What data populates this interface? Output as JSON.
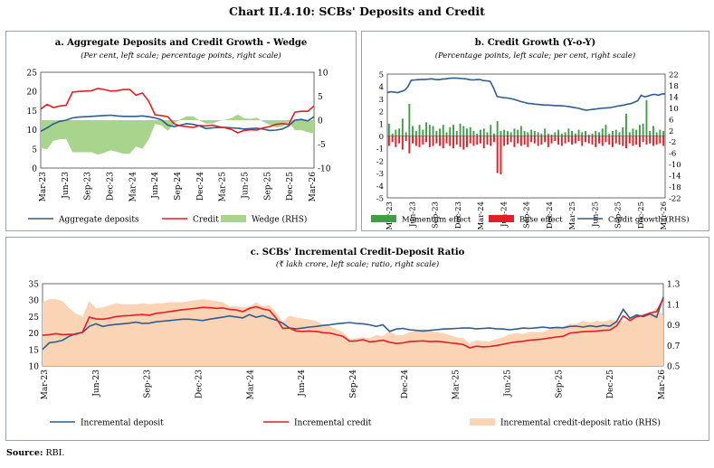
{
  "title": "Chart II.4.10: SCBs' Deposits and Credit",
  "source_label": "Source:",
  "source_text": "RBI.",
  "colors": {
    "blue": "#2e5d8e",
    "red": "#e31f26",
    "green_area": "#a8d48e",
    "green_bar": "#3f9f45",
    "red_bar": "#e31f26",
    "peach": "#fbd3b5"
  },
  "chart_data": [
    {
      "id": "a",
      "type": "line",
      "title": "a. Aggregate Deposits and Credit Growth - Wedge",
      "subtitle": "(Per cent, left scale; percentage points, right scale)",
      "x_ticks": [
        "Mar-23",
        "Jun-23",
        "Sep-23",
        "Dec-23",
        "Mar-24",
        "Jun-24",
        "Sep-24",
        "Dec-24",
        "Mar-25",
        "Jun-25",
        "Sep-25",
        "Dec-25",
        "Mar-26"
      ],
      "ylim": [
        0,
        25
      ],
      "y_ticks": [
        0,
        5,
        10,
        15,
        20,
        25
      ],
      "y2lim": [
        -10,
        10
      ],
      "y2_ticks": [
        -10,
        -5,
        0,
        5,
        10
      ],
      "legend": [
        "Aggregate deposits",
        "Credit",
        "Wedge (RHS)"
      ],
      "series": [
        {
          "name": "Aggregate deposits",
          "axis": "left",
          "values": [
            9.6,
            10.5,
            11.5,
            12.2,
            12.5,
            13.1,
            13.3,
            13.4,
            13.5,
            13.6,
            13.7,
            13.8,
            13.6,
            13.5,
            13.5,
            13.5,
            13.6,
            13.4,
            13.1,
            12.6,
            11.2,
            10.8,
            11.2,
            11.6,
            11.4,
            11.0,
            10.3,
            10.5,
            10.6,
            10.6,
            10.5,
            10.4,
            10.2,
            10.3,
            10.4,
            10.2,
            9.8,
            9.9,
            10.2,
            11.0,
            12.5,
            12.7,
            12.3,
            13.4
          ]
        },
        {
          "name": "Credit",
          "axis": "left",
          "values": [
            15.4,
            16.6,
            15.8,
            16.2,
            16.4,
            19.8,
            20.0,
            20.1,
            20.2,
            20.8,
            20.5,
            20.1,
            20.2,
            20.5,
            20.5,
            19.0,
            19.6,
            17.4,
            13.9,
            13.7,
            13.4,
            11.5,
            11.0,
            10.8,
            10.6,
            11.1,
            11.0,
            11.2,
            10.8,
            10.5,
            10.1,
            9.2,
            9.8,
            10.0,
            9.9,
            10.5,
            10.8,
            11.4,
            11.6,
            11.4,
            14.6,
            14.8,
            14.8,
            16.2
          ]
        },
        {
          "name": "Wedge (RHS)",
          "axis": "right",
          "values": [
            -5.8,
            -6.1,
            -4.3,
            -4.0,
            -3.9,
            -6.7,
            -6.7,
            -6.7,
            -6.7,
            -7.2,
            -6.8,
            -6.3,
            -6.6,
            -7.0,
            -7.0,
            -5.5,
            -6.0,
            -4.0,
            -0.8,
            -1.1,
            -2.2,
            -0.7,
            0.2,
            0.8,
            0.8,
            -0.1,
            -0.7,
            -0.7,
            -0.2,
            0.1,
            0.4,
            1.2,
            0.4,
            0.3,
            0.5,
            -0.3,
            -1.0,
            -1.5,
            -1.4,
            -0.4,
            -2.1,
            -2.1,
            -2.5,
            -2.8
          ]
        }
      ]
    },
    {
      "id": "b",
      "type": "bar",
      "title": "b. Credit Growth (Y-o-Y)",
      "subtitle": "(Percentage points, left scale; per cent, right scale)",
      "x_ticks": [
        "Mar-23",
        "Jun-23",
        "Sep-23",
        "Dec-23",
        "Mar-24",
        "Jun-24",
        "Sep-24",
        "Dec-24",
        "Mar-25",
        "Jun-25",
        "Sep-25",
        "Dec-25",
        "Mar-26"
      ],
      "ylim": [
        -5,
        5
      ],
      "y_ticks": [
        -5,
        -4,
        -3,
        -2,
        -1,
        0,
        1,
        2,
        3,
        4,
        5
      ],
      "y2lim": [
        -22,
        22
      ],
      "y2_ticks": [
        -22,
        -18,
        -14,
        -10,
        -6,
        -2,
        2,
        6,
        10,
        14,
        18,
        22
      ],
      "legend": [
        "Momentum effect",
        "Base effect",
        "Credit growth (RHS)"
      ],
      "series": [
        {
          "name": "Momentum effect",
          "axis": "left",
          "values": [
            1.0,
            0.2,
            0.5,
            0.6,
            1.4,
            0.3,
            2.6,
            0.8,
            0.4,
            0.9,
            0.5,
            1.1,
            0.9,
            0.8,
            0.4,
            0.6,
            0.9,
            0.3,
            0.7,
            0.9,
            0.4,
            1.0,
            0.8,
            0.6,
            0.7,
            0.4,
            0.2,
            0.5,
            0.6,
            0.3,
            0.9,
            0.2,
            1.2,
            0.4,
            0.5,
            0.4,
            0.3,
            0.6,
            0.5,
            0.8,
            0.4,
            0.3,
            0.5,
            0.4,
            0.3,
            0.2,
            0.6,
            0.2,
            0.1,
            0.3,
            0.5,
            0.2,
            0.3,
            0.6,
            0.4,
            0.2,
            0.5,
            0.3,
            0.4,
            0.1,
            0.2,
            0.4,
            0.3,
            0.6,
            0.9,
            0.2,
            0.4,
            0.5,
            0.3,
            0.7,
            1.8,
            0.3,
            0.6,
            0.5,
            0.9,
            1.0,
            2.9,
            0.4,
            0.8,
            0.3,
            0.5,
            0.4
          ]
        },
        {
          "name": "Base effect",
          "axis": "left",
          "values": [
            -0.8,
            -0.5,
            -0.9,
            -0.6,
            -1.1,
            -0.4,
            -1.4,
            -0.6,
            -0.8,
            -0.9,
            -0.7,
            -0.5,
            -0.9,
            -0.8,
            -0.6,
            -0.8,
            -1.0,
            -0.6,
            -0.8,
            -1.0,
            -0.7,
            -0.9,
            -1.1,
            -0.9,
            -0.6,
            -0.8,
            -0.7,
            -0.6,
            -1.0,
            -0.7,
            -0.8,
            -0.5,
            -3.0,
            -3.1,
            -0.8,
            -0.7,
            -0.5,
            -0.9,
            -0.6,
            -0.8,
            -0.7,
            -0.9,
            -0.5,
            -0.6,
            -0.8,
            -0.7,
            -0.5,
            -0.9,
            -0.6,
            -0.4,
            -0.7,
            -0.8,
            -0.6,
            -0.5,
            -0.7,
            -0.6,
            -0.4,
            -0.8,
            -0.5,
            -0.6,
            -0.7,
            -0.9,
            -0.6,
            -0.8,
            -0.5,
            -0.7,
            -0.9,
            -0.6,
            -0.7,
            -0.8,
            -1.0,
            -0.6,
            -0.8,
            -0.7,
            -0.9,
            -0.5,
            -0.7,
            -0.6,
            -0.8,
            -0.7,
            -0.6,
            -0.8
          ]
        },
        {
          "name": "Credit growth (RHS)",
          "axis": "right",
          "values": [
            15.4,
            15.7,
            15.6,
            15.4,
            15.8,
            16.2,
            17.5,
            19.8,
            19.9,
            20.0,
            20.1,
            20.1,
            20.2,
            20.3,
            20.1,
            20.0,
            20.2,
            20.3,
            20.5,
            20.6,
            20.6,
            20.5,
            20.4,
            20.3,
            20.0,
            19.9,
            20.0,
            20.1,
            19.7,
            19.6,
            19.4,
            17.0,
            14.0,
            13.8,
            13.6,
            13.5,
            13.3,
            13.0,
            12.6,
            12.2,
            11.9,
            11.6,
            11.5,
            11.3,
            11.2,
            11.1,
            11.0,
            11.0,
            10.9,
            10.8,
            10.8,
            10.7,
            10.6,
            10.4,
            10.2,
            10.0,
            9.8,
            9.4,
            9.2,
            9.3,
            9.5,
            9.6,
            9.8,
            9.9,
            10.0,
            10.1,
            10.3,
            10.6,
            10.8,
            11.0,
            11.3,
            11.5,
            12.0,
            12.5,
            14.5,
            13.9,
            14.2,
            14.6,
            14.8,
            14.5,
            14.9,
            15.0
          ]
        }
      ]
    },
    {
      "id": "c",
      "type": "line",
      "title": "c. SCBs' Incremental Credit-Deposit Ratio",
      "subtitle": "(₹ lakh crore, left scale; ratio, right scale)",
      "x_ticks": [
        "Mar-23",
        "Jun-23",
        "Sep-23",
        "Dec-23",
        "Mar-24",
        "Jun-24",
        "Sep-24",
        "Dec-24",
        "Mar-25",
        "Jun-25",
        "Sep-25",
        "Dec-25",
        "Mar-26"
      ],
      "ylim": [
        10,
        35
      ],
      "y_ticks": [
        10,
        15,
        20,
        25,
        30,
        35
      ],
      "y2lim": [
        0.5,
        1.3
      ],
      "y2_ticks": [
        0.5,
        0.7,
        0.9,
        1.1,
        1.3
      ],
      "legend": [
        "Incremental deposit",
        "Incremental credit",
        "Incremental credit-deposit ratio (RHS)"
      ],
      "series": [
        {
          "name": "Incremental deposit",
          "axis": "left",
          "values": [
            15.0,
            17.0,
            17.3,
            17.8,
            19.0,
            19.8,
            20.2,
            22.0,
            22.8,
            22.0,
            22.4,
            22.6,
            22.8,
            23.0,
            23.3,
            22.9,
            23.0,
            23.4,
            23.6,
            23.8,
            24.0,
            24.2,
            24.2,
            24.0,
            23.8,
            24.2,
            24.5,
            24.8,
            25.2,
            24.9,
            24.6,
            25.6,
            24.8,
            25.3,
            24.5,
            23.9,
            23.0,
            21.5,
            21.3,
            21.5,
            21.8,
            22.0,
            22.3,
            22.5,
            22.8,
            23.0,
            23.2,
            22.9,
            22.8,
            22.5,
            22.0,
            22.5,
            20.5,
            21.2,
            21.4,
            21.0,
            20.8,
            20.6,
            20.8,
            21.0,
            21.2,
            21.3,
            21.4,
            21.5,
            21.5,
            21.3,
            21.4,
            21.5,
            21.3,
            21.2,
            21.0,
            21.2,
            21.5,
            21.4,
            21.6,
            21.8,
            21.5,
            21.7,
            21.6,
            22.0,
            22.1,
            21.8,
            22.2,
            21.9,
            22.3,
            22.1,
            23.5,
            27.2,
            24.5,
            25.5,
            25.0,
            25.8,
            24.8,
            31.0
          ]
        },
        {
          "name": "Incremental credit",
          "axis": "left",
          "values": [
            19.3,
            19.5,
            19.8,
            19.5,
            19.6,
            19.6,
            20.3,
            24.8,
            24.3,
            24.2,
            24.5,
            25.0,
            25.2,
            25.3,
            25.5,
            25.6,
            25.4,
            26.0,
            26.2,
            26.5,
            26.8,
            27.1,
            27.3,
            27.5,
            27.8,
            27.7,
            27.5,
            27.6,
            27.2,
            27.0,
            26.5,
            27.5,
            28.0,
            27.3,
            26.9,
            24.5,
            21.4,
            21.5,
            20.6,
            20.5,
            20.6,
            20.5,
            20.1,
            20.0,
            19.5,
            19.0,
            17.5,
            17.6,
            18.0,
            17.3,
            17.5,
            17.8,
            17.2,
            16.8,
            17.0,
            17.4,
            17.5,
            17.6,
            17.4,
            17.5,
            17.3,
            17.0,
            16.8,
            16.5,
            15.5,
            16.0,
            15.8,
            15.9,
            16.2,
            16.6,
            17.0,
            17.3,
            17.5,
            17.8,
            18.0,
            18.2,
            18.5,
            18.8,
            19.0,
            20.0,
            20.2,
            20.4,
            20.5,
            20.6,
            20.8,
            20.9,
            22.2,
            25.2,
            23.8,
            25.0,
            25.3,
            26.1,
            26.5,
            30.5
          ]
        },
        {
          "name": "Incremental credit-deposit ratio (RHS)",
          "axis": "right",
          "values": [
            1.12,
            1.15,
            1.15,
            1.13,
            1.06,
            1.01,
            0.98,
            1.13,
            1.06,
            1.07,
            1.09,
            1.11,
            1.1,
            1.1,
            1.1,
            1.11,
            1.1,
            1.11,
            1.11,
            1.12,
            1.12,
            1.12,
            1.13,
            1.14,
            1.15,
            1.14,
            1.13,
            1.12,
            1.08,
            1.08,
            1.07,
            1.08,
            1.12,
            1.08,
            1.09,
            1.02,
            0.93,
            0.99,
            0.97,
            0.96,
            0.95,
            0.94,
            0.9,
            0.89,
            0.86,
            0.83,
            0.76,
            0.77,
            0.78,
            0.77,
            0.8,
            0.79,
            0.84,
            0.8,
            0.8,
            0.83,
            0.84,
            0.86,
            0.84,
            0.83,
            0.82,
            0.8,
            0.78,
            0.77,
            0.72,
            0.75,
            0.74,
            0.74,
            0.76,
            0.78,
            0.81,
            0.82,
            0.81,
            0.83,
            0.83,
            0.83,
            0.86,
            0.87,
            0.88,
            0.91,
            0.91,
            0.94,
            0.92,
            0.94,
            0.93,
            0.95,
            0.94,
            0.93,
            0.97,
            0.98,
            1.01,
            1.01,
            1.07,
            0.99
          ]
        }
      ]
    }
  ]
}
